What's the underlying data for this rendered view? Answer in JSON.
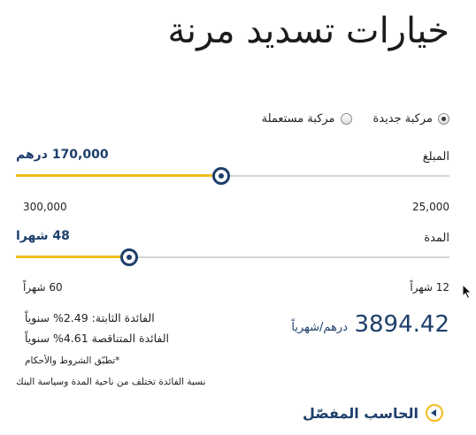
{
  "title": "خيارات تسديد مرنة",
  "vehicle_type": {
    "options": [
      {
        "label": "مركبة جديدة",
        "selected": true
      },
      {
        "label": "مركبة مستعملة",
        "selected": false
      }
    ]
  },
  "amount": {
    "label": "المبلغ",
    "value_display": "170,000 درهم",
    "value": 170000,
    "min_label": "25,000",
    "max_label": "300,000",
    "min": 25000,
    "max": 300000
  },
  "duration": {
    "label": "المدة",
    "value_display": "48 شهرا",
    "value": 48,
    "min_label": "12 شهراً",
    "max_label": "60 شهراً",
    "min": 12,
    "max": 60
  },
  "result": {
    "monthly_payment": "3894.42",
    "unit": "درهم/شهرياً",
    "fixed_rate": "الفائدة الثابتة: 2.49% سنوياً",
    "reducing_rate": "الفائدة المتناقصة 4.61% سنوياً",
    "terms_note": "*تطبّق الشروط والأحكام",
    "rate_note": "نسبة الفائدة تختلف من ناحية المدة وسياسة البنك"
  },
  "detailed_calculator_label": "الحاسب المفصّل",
  "colors": {
    "accent_yellow": "#f2bd1b",
    "brand_navy": "#1e3f6b",
    "track_gray": "#d4d4d4"
  }
}
